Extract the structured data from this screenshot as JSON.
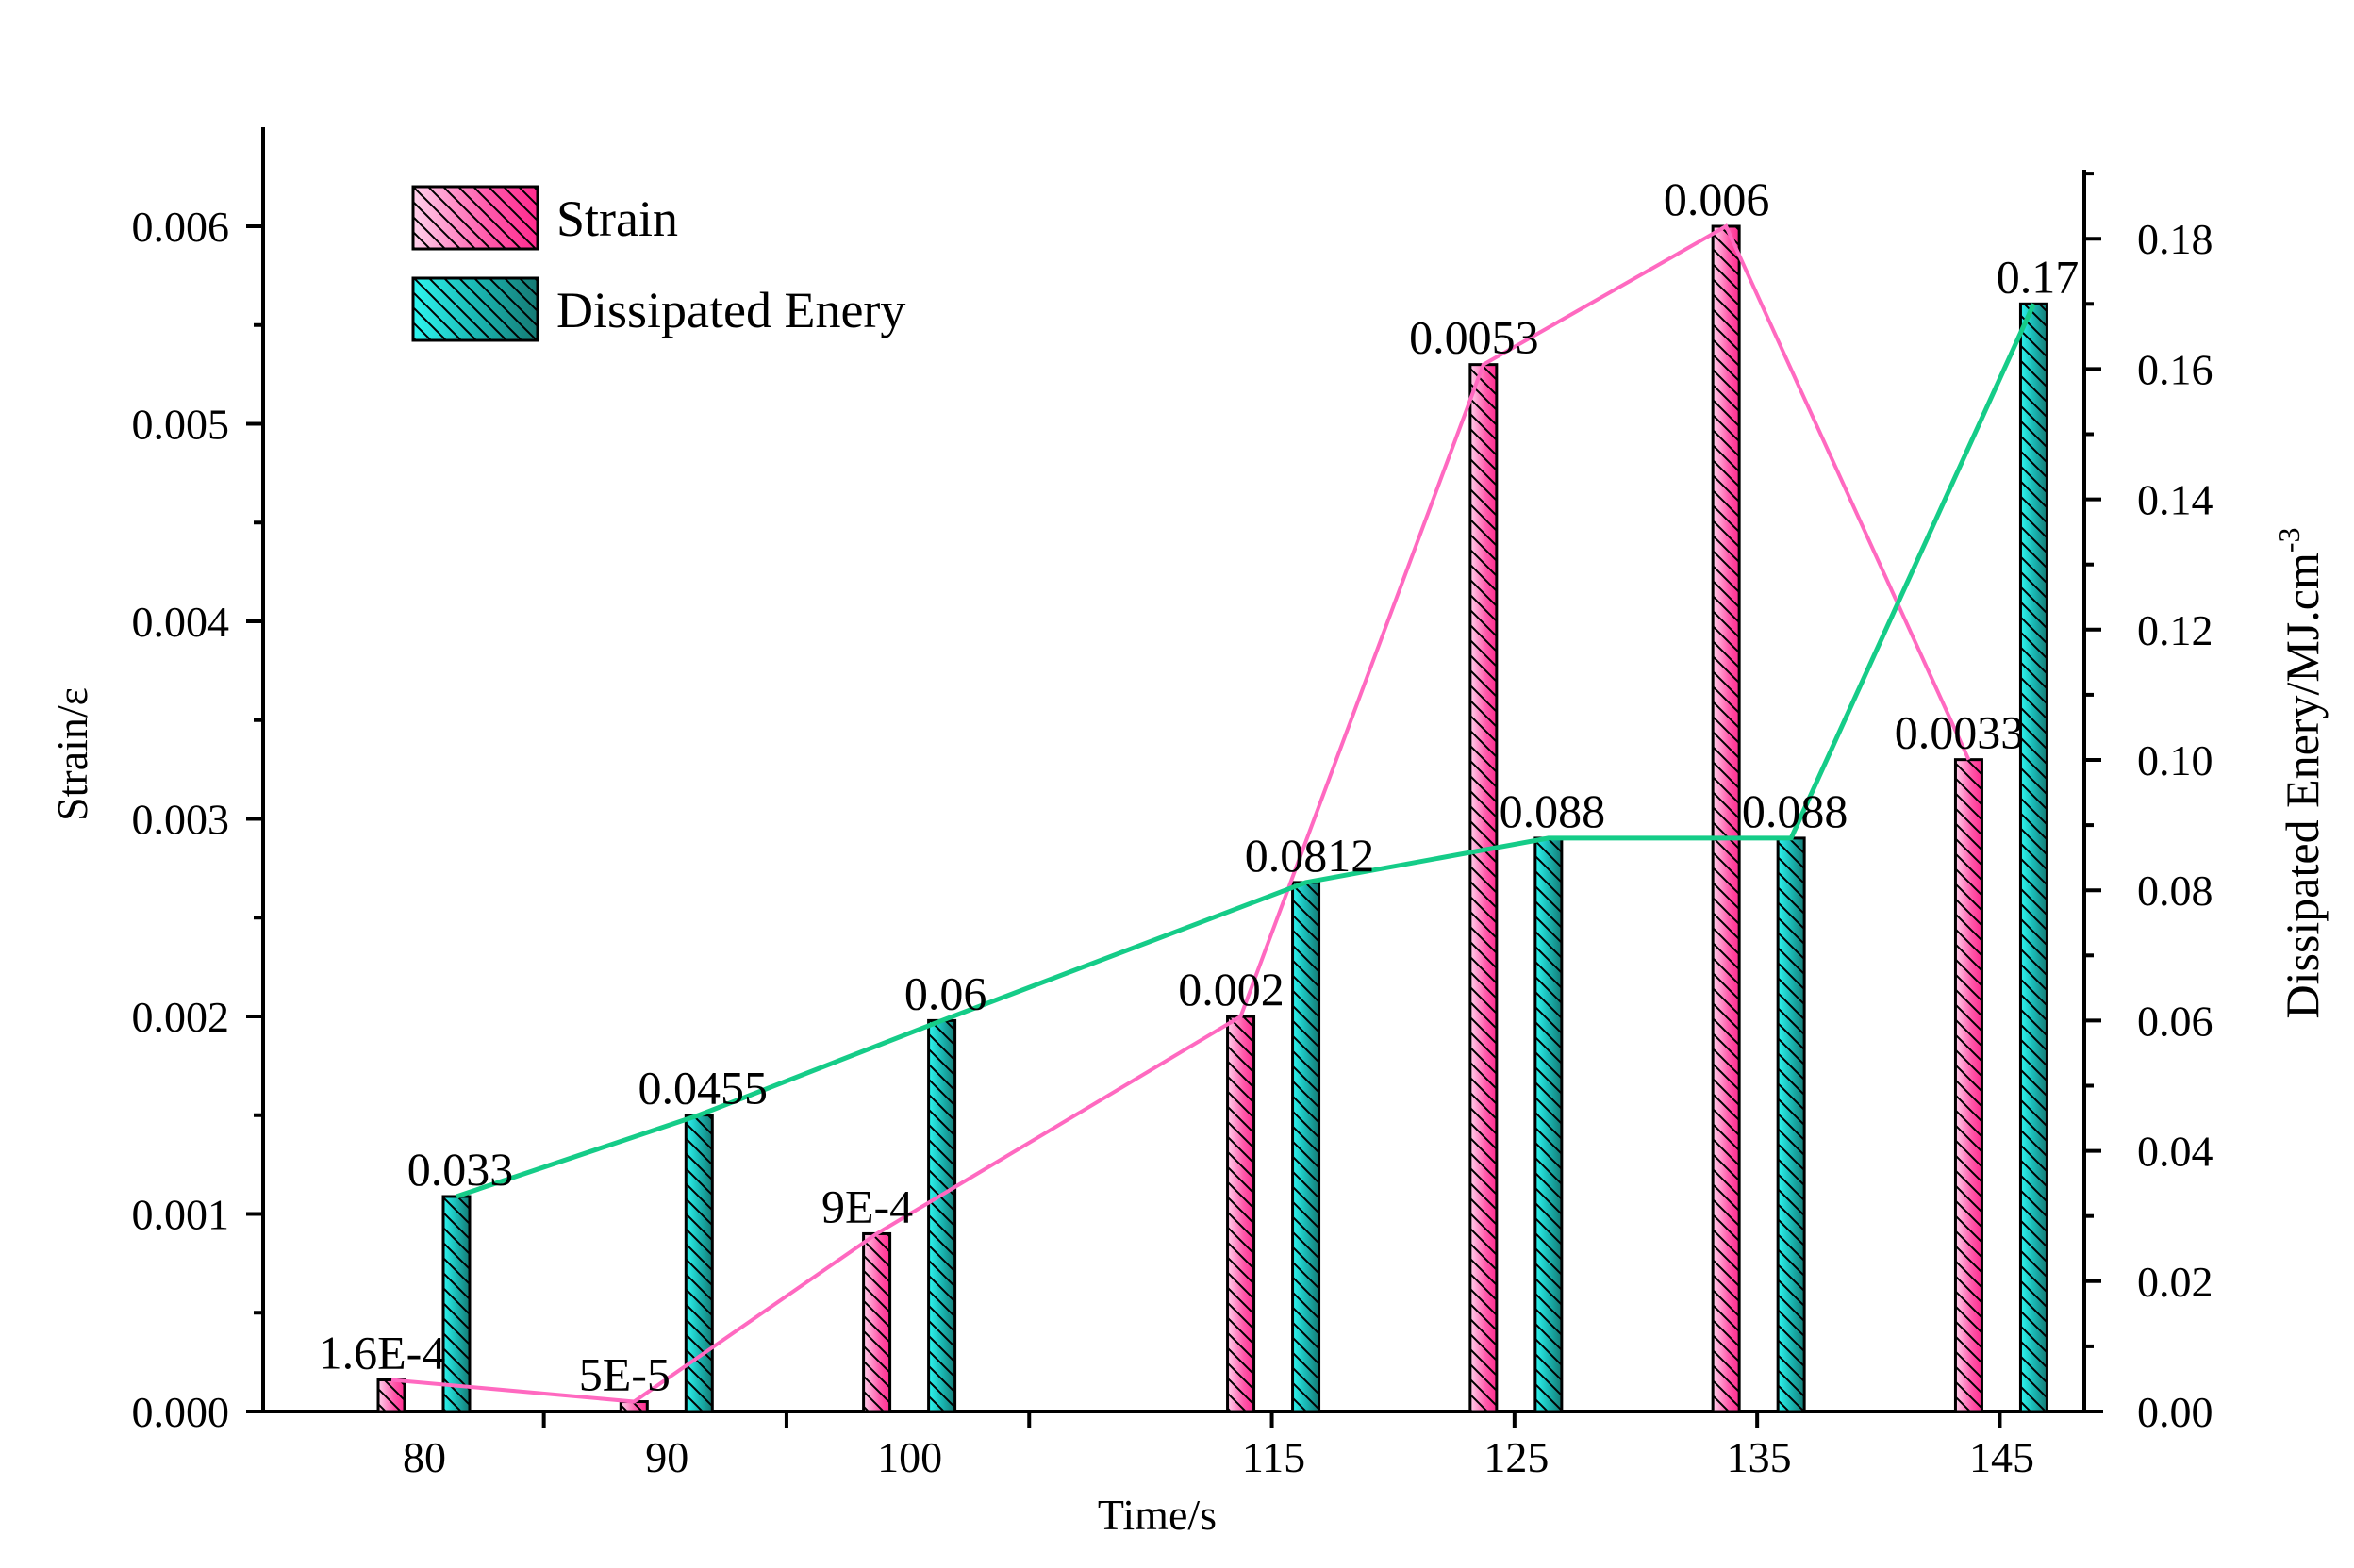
{
  "chart_data": {
    "type": "bar",
    "categories": [
      "80",
      "90",
      "100",
      "115",
      "125",
      "135",
      "145"
    ],
    "x": [
      80,
      90,
      100,
      115,
      125,
      135,
      145
    ],
    "xlabel": "Time/s",
    "ylabel": "Strain/ε",
    "y2label": "Dissipated Enery/MJ.cm",
    "y2label_sup": "-3",
    "ylim": [
      0,
      0.0065
    ],
    "y2lim": [
      0,
      0.19
    ],
    "yticks": [
      "0.000",
      "0.001",
      "0.002",
      "0.003",
      "0.004",
      "0.005",
      "0.006"
    ],
    "yticks_values": [
      0,
      0.001,
      0.002,
      0.003,
      0.004,
      0.005,
      0.006
    ],
    "y2ticks": [
      "0.00",
      "0.02",
      "0.04",
      "0.06",
      "0.08",
      "0.10",
      "0.12",
      "0.14",
      "0.16",
      "0.18"
    ],
    "y2ticks_values": [
      0,
      0.02,
      0.04,
      0.06,
      0.08,
      0.1,
      0.12,
      0.14,
      0.16,
      0.18
    ],
    "legend_position": "top-left",
    "series": [
      {
        "name": "Strain",
        "axis": "left",
        "color": "#ff3e9b",
        "line_color": "#ff69c0",
        "values": [
          0.00016,
          5e-05,
          0.0009,
          0.002,
          0.0053,
          0.006,
          0.0033
        ],
        "labels": [
          "1.6E-4",
          "5E-5",
          "9E-4",
          "0.002",
          "0.0053",
          "0.006",
          "0.0033"
        ]
      },
      {
        "name": "Dissipated Enery",
        "axis": "right",
        "color": "#1fb8b0",
        "line_color": "#15cc88",
        "values": [
          0.033,
          0.0455,
          0.06,
          0.0812,
          0.088,
          0.088,
          0.17
        ],
        "labels": [
          "0.033",
          "0.0455",
          "0.06",
          "0.0812",
          "0.088",
          "0.088",
          "0.17"
        ]
      }
    ]
  }
}
